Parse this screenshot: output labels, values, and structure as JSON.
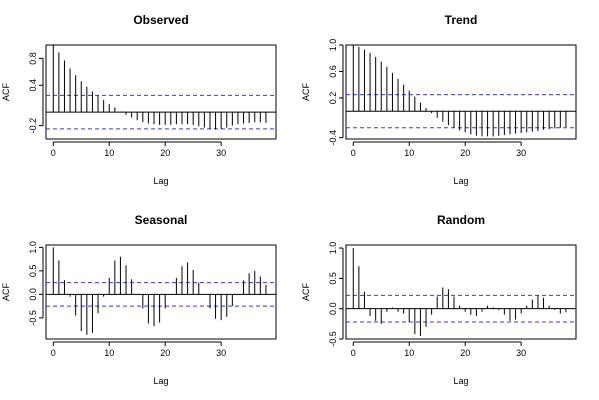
{
  "chart_data": [
    {
      "type": "bar",
      "title": "Observed",
      "xlabel": "Lag",
      "ylabel": "ACF",
      "x_ticks": [
        0,
        10,
        20,
        30
      ],
      "y_ticks": [
        -0.2,
        0.4,
        0.8
      ],
      "ylim": [
        -0.4,
        1.0
      ],
      "ci": 0.25,
      "ci_color": "#3a3ad6",
      "lags": [
        0,
        1,
        2,
        3,
        4,
        5,
        6,
        7,
        8,
        9,
        10,
        11,
        12,
        13,
        14,
        15,
        16,
        17,
        18,
        19,
        20,
        21,
        22,
        23,
        24,
        25,
        26,
        27,
        28,
        29,
        30,
        31,
        32,
        33,
        34,
        35,
        36,
        37,
        38
      ],
      "values": [
        1.0,
        0.89,
        0.77,
        0.65,
        0.55,
        0.46,
        0.38,
        0.31,
        0.25,
        0.18,
        0.12,
        0.07,
        0.01,
        -0.04,
        -0.08,
        -0.12,
        -0.15,
        -0.17,
        -0.18,
        -0.19,
        -0.19,
        -0.19,
        -0.18,
        -0.18,
        -0.18,
        -0.19,
        -0.21,
        -0.23,
        -0.25,
        -0.26,
        -0.25,
        -0.23,
        -0.2,
        -0.18,
        -0.17,
        -0.16,
        -0.15,
        -0.15,
        -0.16
      ]
    },
    {
      "type": "bar",
      "title": "Trend",
      "xlabel": "Lag",
      "ylabel": "ACF",
      "x_ticks": [
        0,
        10,
        20,
        30
      ],
      "y_ticks": [
        -0.4,
        0.2,
        0.6,
        1.0
      ],
      "ylim": [
        -0.42,
        1.0
      ],
      "ci": 0.25,
      "ci_color": "#3a3ad6",
      "lags": [
        0,
        1,
        2,
        3,
        4,
        5,
        6,
        7,
        8,
        9,
        10,
        11,
        12,
        13,
        14,
        15,
        16,
        17,
        18,
        19,
        20,
        21,
        22,
        23,
        24,
        25,
        26,
        27,
        28,
        29,
        30,
        31,
        32,
        33,
        34,
        35,
        36,
        37,
        38
      ],
      "values": [
        1.0,
        0.97,
        0.93,
        0.88,
        0.82,
        0.75,
        0.67,
        0.58,
        0.49,
        0.4,
        0.31,
        0.22,
        0.13,
        0.05,
        -0.03,
        -0.1,
        -0.16,
        -0.21,
        -0.25,
        -0.29,
        -0.32,
        -0.35,
        -0.37,
        -0.38,
        -0.38,
        -0.38,
        -0.37,
        -0.36,
        -0.35,
        -0.34,
        -0.33,
        -0.32,
        -0.31,
        -0.3,
        -0.28,
        -0.27,
        -0.26,
        -0.25,
        -0.24
      ]
    },
    {
      "type": "bar",
      "title": "Seasonal",
      "xlabel": "Lag",
      "ylabel": "ACF",
      "x_ticks": [
        0,
        10,
        20,
        30
      ],
      "y_ticks": [
        -0.5,
        0.0,
        0.5,
        1.0
      ],
      "ylim": [
        -0.95,
        1.05
      ],
      "ci": 0.25,
      "ci_color": "#3a3ad6",
      "lags": [
        0,
        1,
        2,
        3,
        4,
        5,
        6,
        7,
        8,
        9,
        10,
        11,
        12,
        13,
        14,
        15,
        16,
        17,
        18,
        19,
        20,
        21,
        22,
        23,
        24,
        25,
        26,
        27,
        28,
        29,
        30,
        31,
        32,
        33,
        34,
        35,
        36,
        37,
        38
      ],
      "values": [
        1.0,
        0.72,
        0.3,
        -0.05,
        -0.45,
        -0.78,
        -0.86,
        -0.82,
        -0.4,
        -0.05,
        0.35,
        0.72,
        0.8,
        0.62,
        0.32,
        0.0,
        -0.3,
        -0.62,
        -0.68,
        -0.6,
        -0.3,
        0.0,
        0.35,
        0.6,
        0.68,
        0.52,
        0.25,
        0.0,
        -0.3,
        -0.52,
        -0.55,
        -0.48,
        -0.25,
        0.0,
        0.3,
        0.45,
        0.5,
        0.38,
        0.2
      ]
    },
    {
      "type": "bar",
      "title": "Random",
      "xlabel": "Lag",
      "ylabel": "ACF",
      "x_ticks": [
        0,
        10,
        20,
        30
      ],
      "y_ticks": [
        -0.5,
        0.0,
        0.5,
        1.0
      ],
      "ylim": [
        -0.5,
        1.05
      ],
      "ci": 0.22,
      "ci_color": "#3a3ad6",
      "lags": [
        0,
        1,
        2,
        3,
        4,
        5,
        6,
        7,
        8,
        9,
        10,
        11,
        12,
        13,
        14,
        15,
        16,
        17,
        18,
        19,
        20,
        21,
        22,
        23,
        24,
        25,
        26,
        27,
        28,
        29,
        30,
        31,
        32,
        33,
        34,
        35,
        36,
        37,
        38
      ],
      "values": [
        1.0,
        0.7,
        0.28,
        -0.12,
        -0.2,
        -0.25,
        -0.05,
        0.02,
        -0.05,
        -0.08,
        -0.22,
        -0.42,
        -0.45,
        -0.3,
        -0.1,
        0.2,
        0.35,
        0.32,
        0.2,
        0.05,
        -0.05,
        -0.1,
        -0.12,
        -0.05,
        0.05,
        0.02,
        -0.02,
        -0.1,
        -0.2,
        -0.18,
        -0.08,
        0.05,
        0.15,
        0.22,
        0.18,
        0.05,
        -0.02,
        -0.08,
        -0.06
      ]
    }
  ]
}
